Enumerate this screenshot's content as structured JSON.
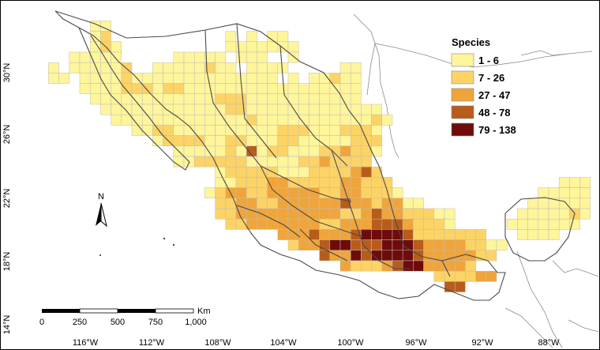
{
  "legend": {
    "title": "Species",
    "classes": [
      {
        "label": "1 - 6",
        "color": "#fff59a"
      },
      {
        "label": "7 - 26",
        "color": "#fcd366"
      },
      {
        "label": "27 - 47",
        "color": "#efa53b"
      },
      {
        "label": "48 - 78",
        "color": "#b85c1b"
      },
      {
        "label": "79 - 138",
        "color": "#6e0b0b"
      }
    ]
  },
  "axes": {
    "lon_labels": [
      "116°W",
      "112°W",
      "108°W",
      "104°W",
      "100°W",
      "96°W",
      "92°W",
      "88°W"
    ],
    "lat_labels": [
      "30°N",
      "26°N",
      "22°N",
      "18°N",
      "14°N"
    ]
  },
  "north_arrow": {
    "label": "N"
  },
  "scale_bar": {
    "unit": "Km",
    "ticks": [
      "0",
      "250",
      "500",
      "750",
      "1,000"
    ]
  },
  "colors": {
    "outline": "#4a4a4a",
    "coast_other": "#8a8a8a",
    "cell_border": "#bdbdbd",
    "frame": "#000000"
  },
  "grid": {
    "rows": [
      [
        1,
        "...................................................."
      ],
      [
        2,
        "......11............................................"
      ],
      [
        3,
        "......12...........1.1.11..........................."
      ],
      [
        4,
        "......121..........1111111..........................."
      ],
      [
        5,
        "....11111.....11111.111..1.........................."
      ],
      [
        6,
        "..1.111112..11111211.1111.....11...................."
      ],
      [
        7,
        "..11.1111211111111111111.1.11211...................."
      ],
      [
        8,
        ".....111122212211111111111111111......................"
      ],
      [
        9,
        "......11111111111122211111111111......................"
      ],
      [
        10,
        ".......111111111111221111111111111......................"
      ],
      [
        11,
        "........111111111111121111111111121......................"
      ],
      [
        12,
        "..........112211111111112221112221......................"
      ],
      [
        13,
        "............1222211221112211111222......................"
      ],
      [
        14,
        "..............11111214122111223221......................"
      ],
      [
        15,
        "..............1122222111112232222......................"
      ],
      [
        16,
        "..................1222221112222342......................"
      ],
      [
        17,
        "..................11222332222233222................111111"
      ],
      [
        18,
        ".................1233223333322332221.............11111111"
      ],
      [
        19,
        "..................22332233333343323311..........111111111"
      ],
      [
        20,
        "..................22333333333322343322211......111112111"
      ],
      [
        21,
        "...................2233333332233344432221.....1111111"
      ],
      [
        22,
        "........................33343334555542222222...1111"
      ],
      [
        23,
        ".........................233455444555433332211"
      ],
      [
        24,
        "............................43354555543333322"
      ],
      [
        25,
        "..............................3222345533332"
      ],
      [
        26,
        ".......................................222233"
      ],
      [
        27,
        "........................................44"
      ]
    ]
  }
}
